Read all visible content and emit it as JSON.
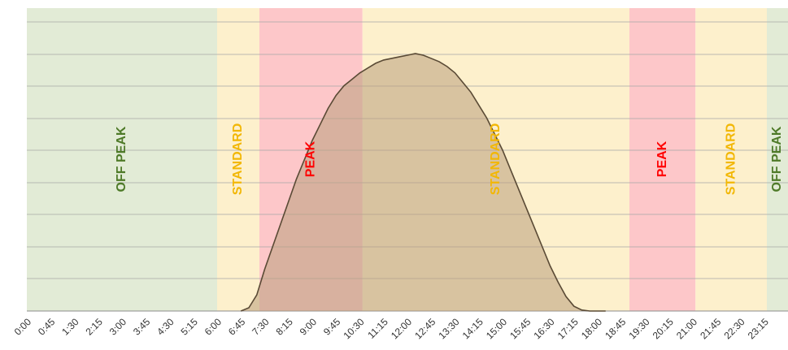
{
  "chart_data": {
    "type": "area",
    "title": "",
    "xlabel": "",
    "ylabel": "",
    "ylim": [
      0,
      8
    ],
    "grid": true,
    "x_tick_labels": [
      "0:00",
      "0:45",
      "1:30",
      "2:15",
      "3:00",
      "3:45",
      "4:30",
      "5:15",
      "6:00",
      "6:45",
      "7:30",
      "8:15",
      "9:00",
      "9:45",
      "10:30",
      "11:15",
      "12:00",
      "12:45",
      "13:30",
      "14:15",
      "15:00",
      "15:45",
      "16:30",
      "17:15",
      "18:00",
      "18:45",
      "19:30",
      "20:15",
      "21:00",
      "21:45",
      "22:30",
      "23:15"
    ],
    "bands": [
      {
        "label": "OFF PEAK",
        "start": "0:00",
        "end": "6:00",
        "fill": "#e2ebd6",
        "text_color": "#4e7a28"
      },
      {
        "label": "STANDARD",
        "start": "6:00",
        "end": "7:20",
        "fill": "#fdf0cc",
        "text_color": "#f2b705"
      },
      {
        "label": "PEAK",
        "start": "7:20",
        "end": "10:35",
        "fill": "#fdc7c9",
        "text_color": "#ff0000"
      },
      {
        "label": "STANDARD",
        "start": "10:35",
        "end": "19:00",
        "fill": "#fdf0cc",
        "text_color": "#f2b705"
      },
      {
        "label": "PEAK",
        "start": "19:00",
        "end": "21:05",
        "fill": "#fdc7c9",
        "text_color": "#ff0000"
      },
      {
        "label": "STANDARD",
        "start": "21:05",
        "end": "23:20",
        "fill": "#fdf0cc",
        "text_color": "#f2b705"
      },
      {
        "label": "OFF PEAK",
        "start": "23:20",
        "end": "24:00",
        "fill": "#e2ebd6",
        "text_color": "#4e7a28"
      }
    ],
    "series": [
      {
        "x": [
          "6:45",
          "7:00",
          "7:15",
          "7:30",
          "7:45",
          "8:00",
          "8:15",
          "8:30",
          "8:45",
          "9:00",
          "9:15",
          "9:30",
          "9:45",
          "10:00",
          "10:15",
          "10:30",
          "10:45",
          "11:00",
          "11:15",
          "11:30",
          "11:45",
          "12:00",
          "12:15",
          "12:30",
          "12:45",
          "13:00",
          "13:15",
          "13:30",
          "13:45",
          "14:00",
          "14:15",
          "14:30",
          "14:45",
          "15:00",
          "15:15",
          "15:30",
          "15:45",
          "16:00",
          "16:15",
          "16:30",
          "16:45",
          "17:00",
          "17:15",
          "17:30",
          "17:45",
          "18:00",
          "18:15"
        ],
        "values": [
          0.0,
          0.1,
          0.5,
          1.3,
          2.0,
          2.7,
          3.4,
          4.1,
          4.7,
          5.3,
          5.8,
          6.3,
          6.7,
          7.0,
          7.2,
          7.4,
          7.55,
          7.7,
          7.8,
          7.85,
          7.9,
          7.95,
          8.0,
          7.95,
          7.85,
          7.75,
          7.6,
          7.4,
          7.1,
          6.8,
          6.4,
          6.0,
          5.5,
          5.0,
          4.4,
          3.8,
          3.2,
          2.6,
          2.0,
          1.4,
          0.9,
          0.45,
          0.15,
          0.03,
          0.0,
          0.0,
          0.0
        ],
        "color": "#5a4a35",
        "fill": "#b99f7c"
      }
    ]
  }
}
